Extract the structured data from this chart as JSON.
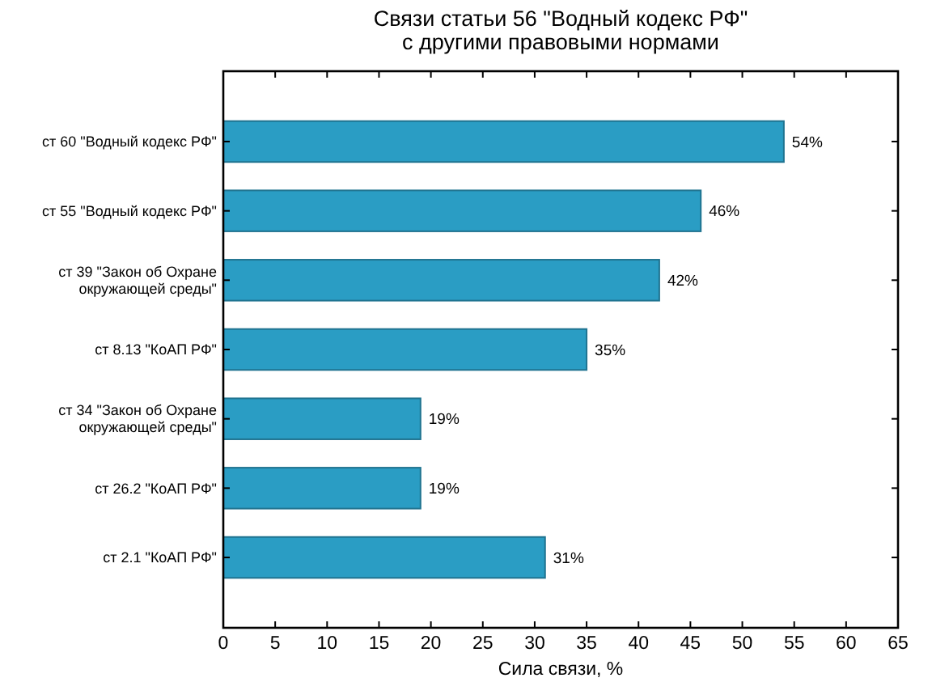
{
  "chart_data": {
    "type": "bar",
    "orientation": "horizontal",
    "title": "Связи статьи 56 \"Водный кодекс РФ\"\nс другими правовыми нормами",
    "xlabel": "Сила связи, %",
    "categories": [
      "ст 60 \"Водный кодекс РФ\"",
      "ст 55 \"Водный кодекс РФ\"",
      "ст 39 \"Закон об Охране\nокружающей среды\"",
      "ст 8.13 \"КоАП РФ\"",
      "ст 34 \"Закон об Охране\nокружающей среды\"",
      "ст 26.2 \"КоАП РФ\"",
      "ст 2.1 \"КоАП РФ\""
    ],
    "values": [
      54,
      46,
      42,
      35,
      19,
      19,
      31
    ],
    "value_labels": [
      "54%",
      "46%",
      "42%",
      "35%",
      "19%",
      "19%",
      "31%"
    ],
    "color": "#2a9dc4",
    "xlim": [
      0,
      65
    ],
    "xticks": [
      0,
      5,
      10,
      15,
      20,
      25,
      30,
      35,
      40,
      45,
      50,
      55,
      60,
      65
    ],
    "grid": false
  }
}
